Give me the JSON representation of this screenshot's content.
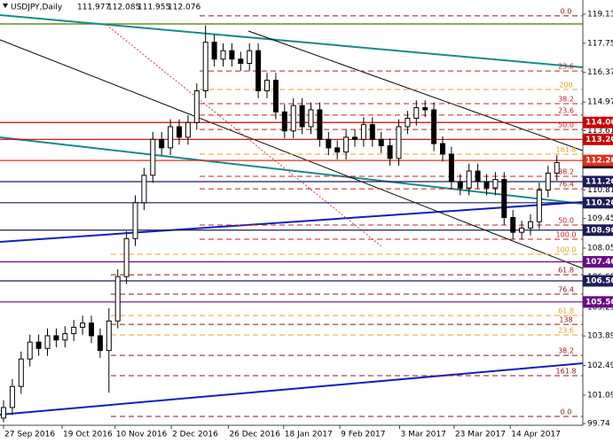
{
  "chart_data": {
    "type": "candlestick",
    "title": "USDJPY,Daily",
    "header_values": [
      111.977,
      112.085,
      111.955,
      112.076
    ],
    "last_price": 112.076,
    "ylim": [
      99.66,
      119.8
    ],
    "yticks": [
      119.13,
      117.75,
      116.37,
      114.97,
      113.61,
      110.81,
      109.45,
      108.05,
      106.69,
      105.25,
      103.89,
      102.49,
      101.09,
      99.74
    ],
    "xticks": [
      {
        "value": 0,
        "label": "27 Sep 2016"
      },
      {
        "value": 6.67,
        "label": "19 Oct 2016"
      },
      {
        "value": 12.7,
        "label": "10 Nov 2016"
      },
      {
        "value": 19.1,
        "label": "2 Dec 2016"
      },
      {
        "value": 25.6,
        "label": "26 Dec 2016"
      },
      {
        "value": 31.9,
        "label": "18 Jan 2017"
      },
      {
        "value": 38.3,
        "label": "9 Feb 2017"
      },
      {
        "value": 45.1,
        "label": "3 Mar 2017"
      },
      {
        "value": 51.3,
        "label": "23 Mar 2017"
      },
      {
        "value": 57.7,
        "label": "14 Apr 2017"
      }
    ],
    "open": [
      100.0,
      100.5,
      101.5,
      102.8,
      103.6,
      103.3,
      103.9,
      103.7,
      104.0,
      104.3,
      104.5,
      103.9,
      103.2,
      104.6,
      106.7,
      108.5,
      110.2,
      111.5,
      113.2,
      112.8,
      113.8,
      113.3,
      114.0,
      115.5,
      117.8,
      117.0,
      117.4,
      117.0,
      116.8,
      117.4,
      115.5,
      116.0,
      114.5,
      113.6,
      114.8,
      113.8,
      114.6,
      113.2,
      112.8,
      112.6,
      113.3,
      113.2,
      113.9,
      113.2,
      112.9,
      112.3,
      113.8,
      114.2,
      114.7,
      114.6,
      113.0,
      112.5,
      111.2,
      110.9,
      111.7,
      111.2,
      110.9,
      111.3,
      109.5,
      108.8,
      109.0,
      109.3,
      110.8,
      111.6
    ],
    "high": [
      100.85,
      101.85,
      103.15,
      103.95,
      103.95,
      104.25,
      104.25,
      104.35,
      104.65,
      104.85,
      104.85,
      104.25,
      105.2,
      107.05,
      108.85,
      110.55,
      111.85,
      113.55,
      113.55,
      114.15,
      114.15,
      114.35,
      115.85,
      118.6,
      118.15,
      117.75,
      117.75,
      117.35,
      117.75,
      117.75,
      116.35,
      116.35,
      114.85,
      115.15,
      115.15,
      114.95,
      114.95,
      113.55,
      113.15,
      113.65,
      113.65,
      114.25,
      114.25,
      113.55,
      113.25,
      114.15,
      114.55,
      115.05,
      115.05,
      114.95,
      113.35,
      112.85,
      111.55,
      112.05,
      112.05,
      111.55,
      111.65,
      111.65,
      109.85,
      109.35,
      109.65,
      111.15,
      111.95,
      112.45
    ],
    "low": [
      99.8,
      100.15,
      101.15,
      102.45,
      102.95,
      102.95,
      103.35,
      103.35,
      103.65,
      103.95,
      103.55,
      102.85,
      101.2,
      104.25,
      106.35,
      108.15,
      109.85,
      111.15,
      112.45,
      112.45,
      112.95,
      112.95,
      113.65,
      115.15,
      116.65,
      116.65,
      116.65,
      116.45,
      116.45,
      115.15,
      115.15,
      114.15,
      113.25,
      113.25,
      113.45,
      113.45,
      112.85,
      112.45,
      112.25,
      112.25,
      112.85,
      112.85,
      112.85,
      112.55,
      111.95,
      111.95,
      113.45,
      113.85,
      114.25,
      112.65,
      112.15,
      110.85,
      110.55,
      110.55,
      110.85,
      110.55,
      110.55,
      109.15,
      108.45,
      108.45,
      108.65,
      108.95,
      110.45,
      111.25
    ],
    "close": [
      100.5,
      101.5,
      102.8,
      103.6,
      103.3,
      103.9,
      103.7,
      104.0,
      104.3,
      104.5,
      103.9,
      103.2,
      104.6,
      106.7,
      108.5,
      110.2,
      111.5,
      113.2,
      112.8,
      113.8,
      113.3,
      114.0,
      115.5,
      117.8,
      117.0,
      117.4,
      117.0,
      116.8,
      117.4,
      115.5,
      116.0,
      114.5,
      113.6,
      114.8,
      113.8,
      114.6,
      113.2,
      112.8,
      112.6,
      113.3,
      113.2,
      113.9,
      113.2,
      112.9,
      112.3,
      113.8,
      114.2,
      114.7,
      114.6,
      113.0,
      112.5,
      111.2,
      110.9,
      111.7,
      111.2,
      110.9,
      111.3,
      109.5,
      108.8,
      109.0,
      109.3,
      110.8,
      111.6,
      112.1
    ],
    "levels": [
      {
        "value": 114,
        "label": "114.00",
        "color": "#cc0000"
      },
      {
        "value": 113.2,
        "label": "113.20",
        "color": "#cc0000"
      },
      {
        "value": 112.2,
        "label": "112.20",
        "color": "#e0301a"
      },
      {
        "value": 111.2,
        "label": "111.20",
        "color": "#1c1c5a"
      },
      {
        "value": 110.2,
        "label": "110.20",
        "color": "#1c1c5a"
      },
      {
        "value": 108.9,
        "label": "108.90",
        "color": "#1c1c5a"
      },
      {
        "value": 107.4,
        "label": "107.40",
        "color": "#6a0a8a"
      },
      {
        "value": 106.5,
        "label": "106.50",
        "color": "#1c1c5a"
      },
      {
        "value": 105.5,
        "label": "105.50",
        "color": "#6a0a8a"
      }
    ],
    "fib_levels": [
      {
        "label": "0.0",
        "value": 119.05,
        "color": "#8b1a1a"
      },
      {
        "label": "23.6",
        "value": 116.44,
        "color": "#c02020"
      },
      {
        "label": "200",
        "value": 115.56,
        "color": "#e8a020"
      },
      {
        "label": "38.2",
        "value": 114.89,
        "color": "#c02020"
      },
      {
        "label": "23.6",
        "value": 114.35,
        "color": "#c02020"
      },
      {
        "label": "50.0",
        "value": 113.67,
        "color": "#c02020"
      },
      {
        "label": "161.8",
        "value": 112.5,
        "color": "#e8a020"
      },
      {
        "label": "38.2",
        "value": 111.45,
        "color": "#c02020"
      },
      {
        "label": "76.4",
        "value": 110.86,
        "color": "#c02020"
      },
      {
        "label": "50.0",
        "value": 109.14,
        "color": "#c02020"
      },
      {
        "label": "100.0",
        "value": 108.47,
        "color": "#c02020"
      },
      {
        "label": "100.0",
        "value": 107.76,
        "color": "#e8a020"
      },
      {
        "label": "61.8",
        "value": 106.79,
        "color": "#8b1a1a"
      },
      {
        "label": "76.4",
        "value": 105.87,
        "color": "#8b1a1a"
      },
      {
        "label": "61.8",
        "value": 104.86,
        "color": "#e8a020"
      },
      {
        "label": "138",
        "value": 104.44,
        "color": "#8b1a1a"
      },
      {
        "label": "23.6",
        "value": 103.94,
        "color": "#e8a020"
      },
      {
        "label": "38.2",
        "value": 102.97,
        "color": "#8b1a1a"
      },
      {
        "label": "161.8",
        "value": 102.01,
        "color": "#8b1a1a"
      },
      {
        "label": "0.0",
        "value": 100.08,
        "color": "#8b1a1a"
      }
    ]
  }
}
